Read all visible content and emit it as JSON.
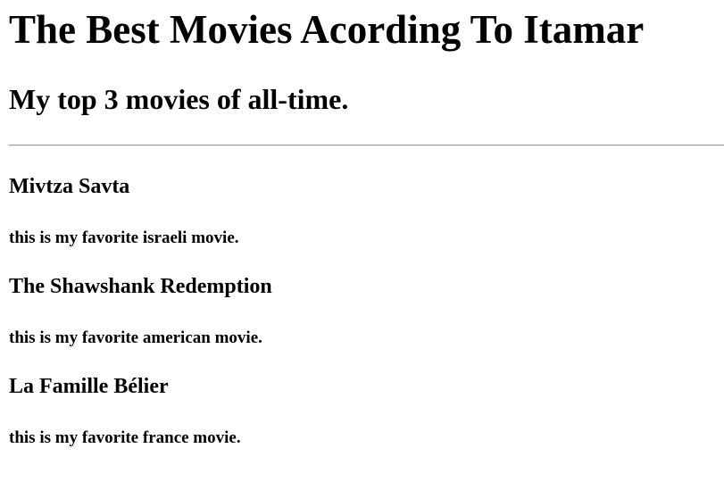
{
  "header": {
    "title": "The Best Movies Acording To Itamar",
    "subtitle": "My top 3 movies of all-time."
  },
  "movies": [
    {
      "title": "Mivtza Savta",
      "description": "this is my favorite israeli movie."
    },
    {
      "title": "The Shawshank Redemption",
      "description": "this is my favorite american movie."
    },
    {
      "title": "La Famille Bélier",
      "description": "this is my favorite france movie."
    }
  ]
}
